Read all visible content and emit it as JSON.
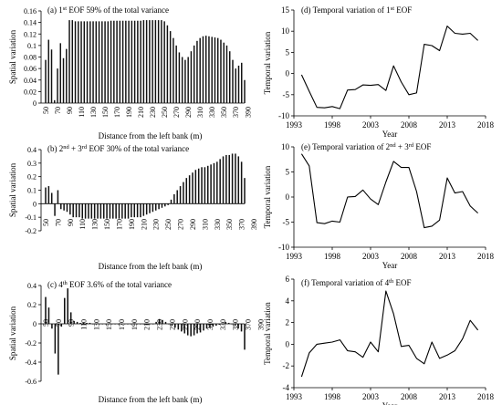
{
  "chart_data": [
    {
      "type": "bar",
      "title": "(a) 1st EOF 59% of the total variance",
      "xlabel": "Distance from the left bank (m)",
      "ylabel": "Spatial variation",
      "ylim": [
        0,
        0.16
      ],
      "yticks": [
        "0",
        "0.02",
        "0.04",
        "0.06",
        "0.08",
        "0.1",
        "0.12",
        "0.14",
        "0.16"
      ],
      "xtick_labels": [
        "50",
        "70",
        "90",
        "110",
        "130",
        "150",
        "170",
        "190",
        "210",
        "230",
        "250",
        "270",
        "290",
        "310",
        "330",
        "350",
        "370",
        "390"
      ],
      "x_start": 50,
      "x_step": 5,
      "values": [
        0.075,
        0.11,
        0.093,
        0.005,
        0.06,
        0.104,
        0.078,
        0.094,
        0.144,
        0.144,
        0.142,
        0.142,
        0.142,
        0.142,
        0.142,
        0.142,
        0.142,
        0.142,
        0.142,
        0.142,
        0.142,
        0.142,
        0.143,
        0.143,
        0.143,
        0.143,
        0.143,
        0.143,
        0.143,
        0.143,
        0.143,
        0.143,
        0.143,
        0.144,
        0.144,
        0.144,
        0.144,
        0.144,
        0.144,
        0.144,
        0.142,
        0.135,
        0.125,
        0.113,
        0.1,
        0.088,
        0.08,
        0.075,
        0.08,
        0.09,
        0.1,
        0.108,
        0.113,
        0.116,
        0.117,
        0.116,
        0.115,
        0.114,
        0.113,
        0.11,
        0.105,
        0.1,
        0.09,
        0.075,
        0.06,
        0.065,
        0.07,
        0.04
      ]
    },
    {
      "type": "bar",
      "title": "(b) 2nd + 3rd EOF 30% of the total variance",
      "xlabel": "Distance from the left bank (m)",
      "ylabel": "Spatial variation",
      "ylim": [
        -0.2,
        0.4
      ],
      "yticks": [
        "-0.2",
        "-0.1",
        "0",
        "0.1",
        "0.2",
        "0.3",
        "0.4"
      ],
      "xtick_labels": [
        "50",
        "70",
        "90",
        "110",
        "130",
        "150",
        "170",
        "190",
        "210",
        "230",
        "250",
        "270",
        "290",
        "310",
        "330",
        "350",
        "370",
        "390"
      ],
      "x_start": 50,
      "x_step": 5,
      "values": [
        0.12,
        0.13,
        0.08,
        -0.09,
        0.1,
        -0.04,
        -0.05,
        -0.06,
        -0.08,
        -0.1,
        -0.1,
        -0.1,
        -0.11,
        -0.11,
        -0.11,
        -0.11,
        -0.11,
        -0.11,
        -0.11,
        -0.11,
        -0.11,
        -0.11,
        -0.11,
        -0.11,
        -0.11,
        -0.11,
        -0.11,
        -0.11,
        -0.1,
        -0.1,
        -0.1,
        -0.1,
        -0.09,
        -0.08,
        -0.07,
        -0.06,
        -0.05,
        -0.04,
        -0.03,
        -0.02,
        -0.01,
        0.03,
        0.07,
        0.1,
        0.13,
        0.16,
        0.19,
        0.21,
        0.23,
        0.25,
        0.26,
        0.27,
        0.27,
        0.28,
        0.29,
        0.3,
        0.31,
        0.33,
        0.35,
        0.36,
        0.36,
        0.37,
        0.37,
        0.35,
        0.31,
        0.19
      ]
    },
    {
      "type": "bar",
      "title": "(c) 4th EOF 3.6% of the total variance",
      "xlabel": "Distance from the left bank (m)",
      "ylabel": "Spatial variation",
      "ylim": [
        -0.6,
        0.4
      ],
      "yticks": [
        "-0.6",
        "-0.4",
        "-0.2",
        "0",
        "0.2",
        "0.4"
      ],
      "xtick_labels": [
        "50",
        "70",
        "90",
        "110",
        "130",
        "150",
        "170",
        "190",
        "210",
        "230",
        "250",
        "270",
        "290",
        "310",
        "330",
        "350",
        "370",
        "390"
      ],
      "x_start": 50,
      "x_step": 5,
      "values": [
        0.28,
        0.17,
        -0.05,
        -0.31,
        -0.53,
        -0.03,
        0.27,
        0.37,
        0.12,
        0.03,
        0.02,
        0.01,
        0.01,
        0.01,
        0.01,
        0.0,
        0.0,
        0.0,
        0.0,
        0.0,
        0.0,
        0.0,
        0.0,
        0.0,
        0.0,
        0.0,
        0.0,
        0.0,
        0.0,
        0.0,
        0.0,
        0.0,
        0.0,
        0.0,
        0.0,
        0.02,
        0.05,
        0.04,
        0.02,
        0.0,
        -0.02,
        -0.04,
        -0.06,
        -0.08,
        -0.1,
        -0.12,
        -0.13,
        -0.12,
        -0.1,
        -0.09,
        -0.07,
        -0.05,
        -0.04,
        -0.03,
        -0.02,
        -0.01,
        0.0,
        0.02,
        0.01,
        0.0,
        -0.02,
        -0.05,
        -0.08,
        -0.27
      ]
    },
    {
      "type": "line",
      "title": "(d) Temporal variation of 1st EOF",
      "xlabel": "Year",
      "ylabel": "Temporal variation",
      "xlim": [
        1993,
        2018
      ],
      "xticks": [
        1993,
        1998,
        2003,
        2008,
        2013,
        2018
      ],
      "ylim": [
        -10,
        15
      ],
      "yticks": [
        -10,
        -5,
        0,
        5,
        10,
        15
      ],
      "x": [
        1994,
        1995,
        1996,
        1997,
        1998,
        1999,
        2000,
        2001,
        2002,
        2003,
        2004,
        2005,
        2006,
        2007,
        2008,
        2009,
        2010,
        2011,
        2012,
        2013,
        2014,
        2015,
        2016,
        2017
      ],
      "values": [
        -0.3,
        -4.2,
        -8.0,
        -8.1,
        -7.8,
        -8.3,
        -3.9,
        -3.8,
        -2.7,
        -2.8,
        -2.6,
        -4.0,
        1.8,
        -2.0,
        -5.0,
        -4.6,
        6.9,
        6.6,
        5.4,
        11.2,
        9.5,
        9.3,
        9.5,
        7.8
      ]
    },
    {
      "type": "line",
      "title": "(e) Temporal variation of 2nd + 3rd EOF",
      "xlabel": "Year",
      "ylabel": "Temporal variation",
      "xlim": [
        1993,
        2018
      ],
      "xticks": [
        1993,
        1998,
        2003,
        2008,
        2013,
        2018
      ],
      "ylim": [
        -10,
        10
      ],
      "yticks": [
        -10,
        -5,
        0,
        5,
        10
      ],
      "x": [
        1994,
        1995,
        1996,
        1997,
        1998,
        1999,
        2000,
        2001,
        2002,
        2003,
        2004,
        2005,
        2006,
        2007,
        2008,
        2009,
        2010,
        2011,
        2012,
        2013,
        2014,
        2015,
        2016,
        2017
      ],
      "values": [
        8.6,
        6.2,
        -5.1,
        -5.3,
        -4.8,
        -5.0,
        0.0,
        0.1,
        1.4,
        -0.4,
        -1.5,
        3.0,
        7.1,
        5.9,
        5.9,
        1.1,
        -6.1,
        -5.8,
        -4.6,
        3.8,
        0.8,
        1.1,
        -1.8,
        -3.2
      ]
    },
    {
      "type": "line",
      "title": "(f) Temporal variation of 4th EOF",
      "xlabel": "Year",
      "ylabel": "Temporal variation",
      "xlim": [
        1993,
        2018
      ],
      "xticks": [
        1993,
        1998,
        2003,
        2008,
        2013,
        2018
      ],
      "ylim": [
        -4,
        6
      ],
      "yticks": [
        -4,
        -2,
        0,
        2,
        4,
        6
      ],
      "x": [
        1994,
        1995,
        1996,
        1997,
        1998,
        1999,
        2000,
        2001,
        2002,
        2003,
        2004,
        2005,
        2006,
        2007,
        2008,
        2009,
        2010,
        2011,
        2012,
        2013,
        2014,
        2015,
        2016,
        2017
      ],
      "values": [
        -3.0,
        -0.8,
        0.0,
        0.1,
        0.2,
        0.4,
        -0.6,
        -0.7,
        -1.2,
        0.2,
        -0.7,
        4.9,
        2.8,
        -0.2,
        -0.1,
        -1.3,
        -1.8,
        0.2,
        -1.3,
        -1.0,
        -0.6,
        0.5,
        2.2,
        1.3
      ]
    }
  ]
}
